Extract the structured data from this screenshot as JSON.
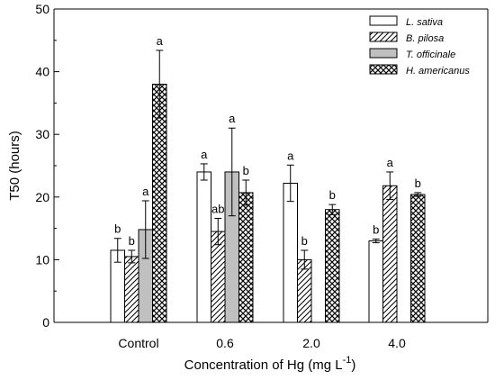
{
  "chart_data": {
    "type": "bar",
    "title": "",
    "xlabel": "Concentration of Hg",
    "xlabel_unit_base": "(mg L",
    "xlabel_unit_exp": "-1",
    "xlabel_unit_close": ")",
    "ylabel": "T50 (hours)",
    "ylim": [
      0,
      50
    ],
    "yticks": [
      0,
      10,
      20,
      30,
      40,
      50
    ],
    "categories": [
      "Control",
      "0.6",
      "2.0",
      "4.0"
    ],
    "legend_position": "top-right",
    "series": [
      {
        "name": "L. sativa",
        "pattern": "white",
        "values": [
          11.5,
          24.0,
          22.2,
          13.0
        ],
        "errors": [
          1.9,
          1.3,
          2.9,
          0.3
        ],
        "labels": [
          "b",
          "a",
          "a",
          "b"
        ]
      },
      {
        "name": "B. pilosa",
        "pattern": "hatch",
        "values": [
          10.5,
          14.5,
          10.0,
          21.8
        ],
        "errors": [
          1.0,
          2.1,
          1.5,
          2.2
        ],
        "labels": [
          "b",
          "ab",
          "b",
          "a"
        ]
      },
      {
        "name": "T. officinale",
        "pattern": "gray",
        "values": [
          14.8,
          24.0,
          null,
          null
        ],
        "errors": [
          4.6,
          7.0,
          null,
          null
        ],
        "labels": [
          "a",
          "a",
          "",
          ""
        ]
      },
      {
        "name": "H. americanus",
        "pattern": "crosshatch",
        "values": [
          38.0,
          20.7,
          18.0,
          20.4
        ],
        "errors": [
          5.4,
          2.0,
          0.8,
          0.3
        ],
        "labels": [
          "a",
          "b",
          "b",
          "b"
        ]
      }
    ]
  }
}
